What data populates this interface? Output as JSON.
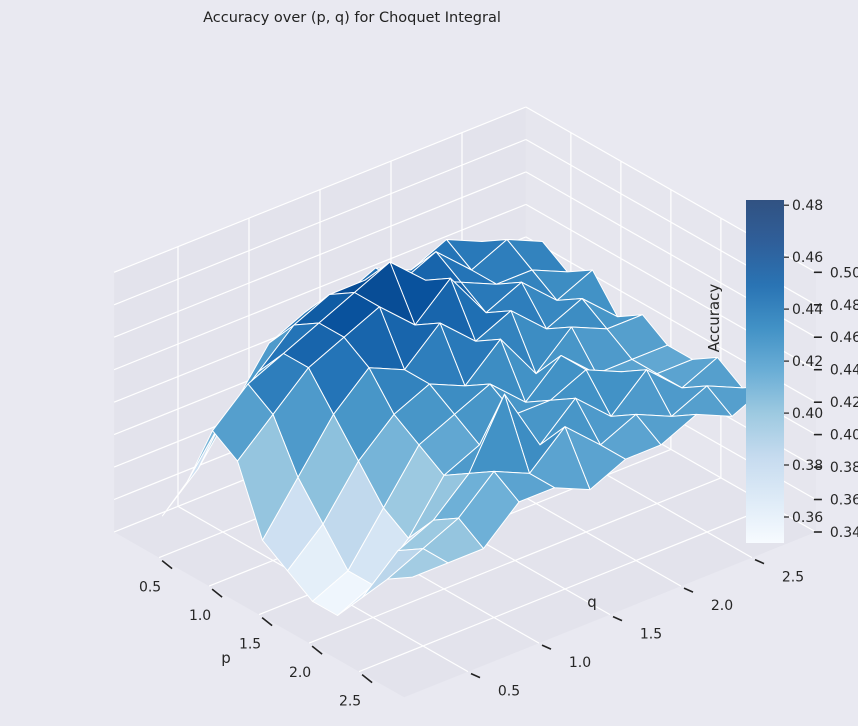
{
  "chart_data": {
    "type": "surface3d",
    "title": "Accuracy over (p, q) for Choquet Integral",
    "xlabel": "p",
    "ylabel": "q",
    "zlabel": "Accuracy",
    "x_ticks": [
      "0.5",
      "1.0",
      "1.5",
      "2.0",
      "2.5"
    ],
    "y_ticks": [
      "0.5",
      "1.0",
      "1.5",
      "2.0",
      "2.5"
    ],
    "z_ticks": [
      "0.34",
      "0.36",
      "0.38",
      "0.40",
      "0.42",
      "0.44",
      "0.46",
      "0.48",
      "0.50"
    ],
    "colorbar_ticks": [
      "0.36",
      "0.38",
      "0.40",
      "0.42",
      "0.44",
      "0.46",
      "0.48"
    ],
    "colormap": "Blues",
    "x": [
      0.25,
      0.5,
      0.75,
      1.0,
      1.25,
      1.5,
      1.75,
      2.0,
      2.25,
      2.5,
      2.75
    ],
    "y": [
      0.25,
      0.5,
      0.75,
      1.0,
      1.25,
      1.5,
      1.75,
      2.0,
      2.25,
      2.5,
      2.75
    ],
    "z": [
      [
        0.35,
        0.37,
        0.4,
        0.43,
        0.44,
        0.44,
        0.45,
        0.44,
        0.45,
        0.44,
        0.43
      ],
      [
        0.38,
        0.41,
        0.43,
        0.45,
        0.46,
        0.46,
        0.45,
        0.46,
        0.44,
        0.45,
        0.44
      ],
      [
        0.42,
        0.44,
        0.45,
        0.46,
        0.47,
        0.48,
        0.46,
        0.45,
        0.44,
        0.44,
        0.43
      ],
      [
        0.41,
        0.43,
        0.45,
        0.46,
        0.47,
        0.45,
        0.47,
        0.44,
        0.45,
        0.43,
        0.44
      ],
      [
        0.37,
        0.4,
        0.43,
        0.45,
        0.44,
        0.46,
        0.44,
        0.45,
        0.43,
        0.44,
        0.42
      ],
      [
        0.36,
        0.38,
        0.41,
        0.43,
        0.44,
        0.43,
        0.45,
        0.42,
        0.44,
        0.43,
        0.43
      ],
      [
        0.35,
        0.36,
        0.39,
        0.42,
        0.43,
        0.44,
        0.42,
        0.44,
        0.42,
        0.42,
        0.42
      ],
      [
        0.35,
        0.36,
        0.38,
        0.41,
        0.42,
        0.43,
        0.43,
        0.44,
        0.43,
        0.42,
        0.42
      ],
      [
        0.37,
        0.39,
        0.4,
        0.42,
        0.46,
        0.42,
        0.44,
        0.42,
        0.44,
        0.42,
        0.43
      ],
      [
        0.39,
        0.4,
        0.41,
        0.43,
        0.42,
        0.44,
        0.42,
        0.43,
        0.42,
        0.43,
        0.42
      ],
      [
        0.4,
        0.4,
        0.4,
        0.42,
        0.42,
        0.41,
        0.42,
        0.42,
        0.43,
        0.42,
        0.43
      ]
    ],
    "zlim": [
      0.34,
      0.5
    ],
    "colorbar_range": [
      0.35,
      0.482
    ],
    "grid": true,
    "colorbar_placement": "right"
  }
}
